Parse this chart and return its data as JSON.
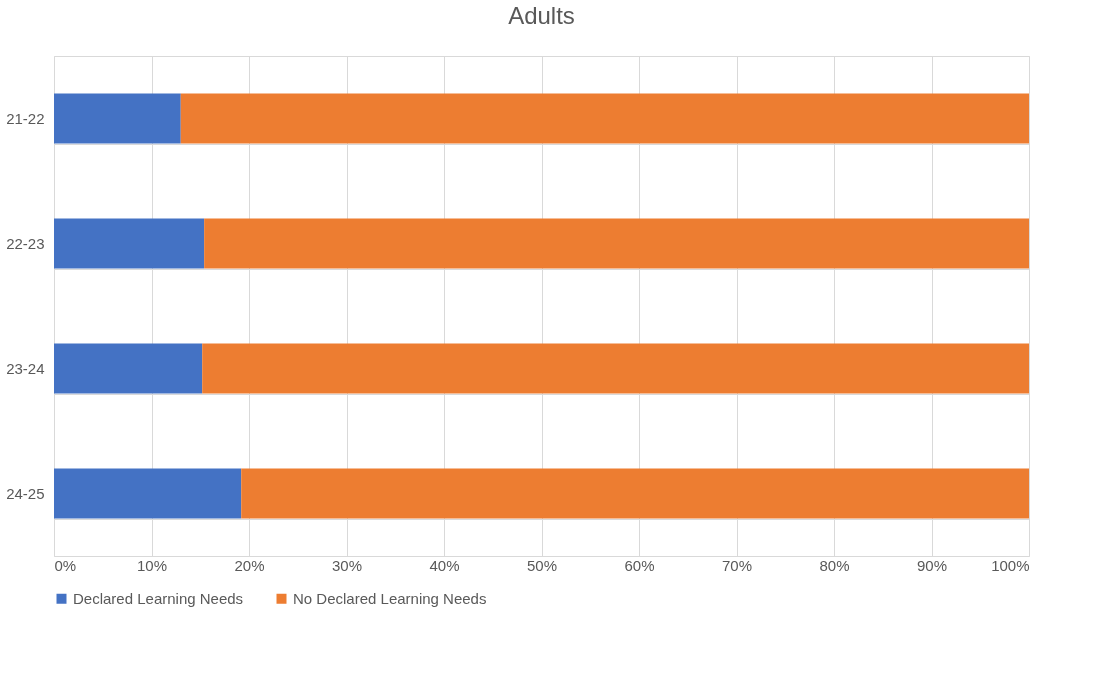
{
  "chart_data": {
    "type": "bar",
    "orientation": "horizontal",
    "stacked": true,
    "title": "Adults",
    "categories": [
      "21-22",
      "22-23",
      "23-24",
      "24-25"
    ],
    "series": [
      {
        "name": "Declared Learning Needs",
        "color": "#4472c4",
        "values": [
          13.0,
          15.4,
          15.2,
          19.2
        ]
      },
      {
        "name": "No Declared Learning Needs",
        "color": "#ed7d31",
        "values": [
          87.0,
          84.6,
          84.8,
          80.8
        ]
      }
    ],
    "xlim": [
      0,
      100
    ],
    "xticks": [
      {
        "value": 0,
        "label": "0%"
      },
      {
        "value": 10,
        "label": "10%"
      },
      {
        "value": 20,
        "label": "20%"
      },
      {
        "value": 30,
        "label": "30%"
      },
      {
        "value": 40,
        "label": "40%"
      },
      {
        "value": 50,
        "label": "50%"
      },
      {
        "value": 60,
        "label": "60%"
      },
      {
        "value": 70,
        "label": "70%"
      },
      {
        "value": 80,
        "label": "80%"
      },
      {
        "value": 90,
        "label": "90%"
      },
      {
        "value": 100,
        "label": "100%"
      }
    ],
    "grid": true,
    "legend": "bottom"
  }
}
